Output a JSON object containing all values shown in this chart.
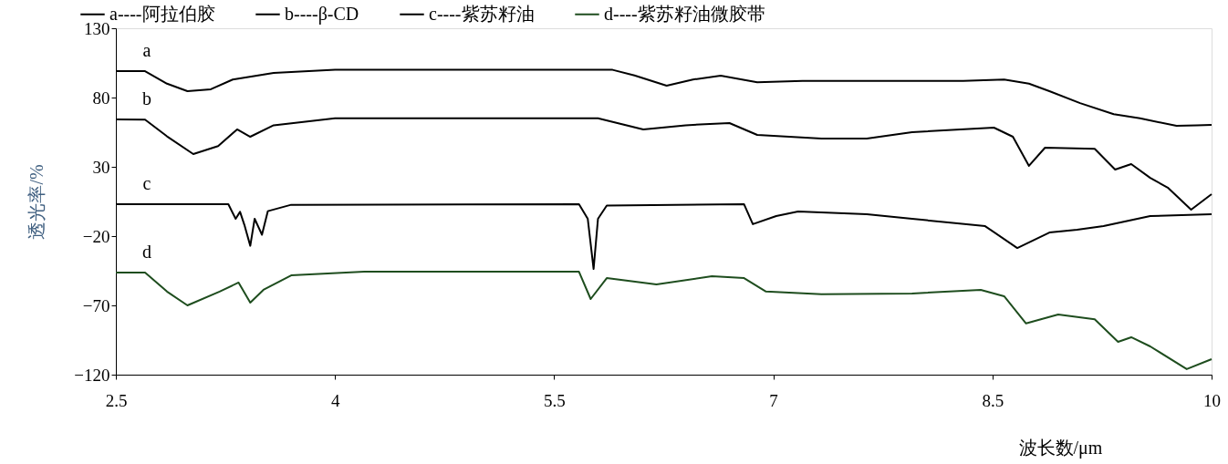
{
  "chart_data": {
    "type": "line",
    "xlabel": "波长数/μm",
    "ylabel": "透光率/%",
    "xlim": [
      2.5,
      10
    ],
    "xticks": [
      2.5,
      4,
      5.5,
      7,
      8.5,
      10
    ],
    "ylim": [
      -120,
      130
    ],
    "yticks": [
      130,
      80,
      30,
      -20,
      -70,
      -120
    ],
    "grid": false,
    "legend": "top",
    "marker": "none",
    "line_style": "solid",
    "series": [
      {
        "name": "a----阿拉伯胶",
        "color": "#000000",
        "x": [
          2.5,
          2.7,
          2.85,
          2.99,
          3.15,
          3.3,
          3.58,
          4.0,
          5.0,
          5.9,
          6.05,
          6.27,
          6.45,
          6.64,
          6.89,
          7.2,
          7.95,
          8.3,
          8.58,
          8.75,
          8.89,
          9.1,
          9.33,
          9.51,
          9.76,
          9.9,
          10.0
        ],
        "values": [
          99,
          99,
          90,
          84.6,
          86,
          93,
          97.8,
          100,
          100,
          100,
          96,
          88.6,
          93,
          95.8,
          91,
          92,
          92,
          92,
          93,
          90,
          84.6,
          76,
          68,
          65,
          59.6,
          60,
          60.3
        ]
      },
      {
        "name": "b----β-CD",
        "color": "#000000",
        "x": [
          2.5,
          2.7,
          2.85,
          3.03,
          3.2,
          3.33,
          3.42,
          3.58,
          4.0,
          5.0,
          5.8,
          6.11,
          6.4,
          6.7,
          6.89,
          7.33,
          7.64,
          7.95,
          8.51,
          8.64,
          8.75,
          8.86,
          9.2,
          9.34,
          9.45,
          9.58,
          9.7,
          9.86,
          10.0
        ],
        "values": [
          64.2,
          64,
          52,
          39.2,
          45,
          57,
          51.7,
          60,
          65,
          65,
          65,
          57,
          60,
          61.6,
          53,
          50.4,
          50.4,
          55,
          58.3,
          51.7,
          30.7,
          43.8,
          43,
          28,
          32,
          22,
          15,
          -0.9,
          10.3
        ]
      },
      {
        "name": "c----紫苏籽油",
        "color": "#000000",
        "x": [
          2.5,
          3.27,
          3.32,
          3.35,
          3.38,
          3.42,
          3.45,
          3.5,
          3.54,
          3.7,
          5.67,
          5.73,
          5.77,
          5.8,
          5.86,
          6.8,
          6.86,
          7.02,
          7.17,
          7.64,
          7.95,
          8.26,
          8.45,
          8.67,
          8.89,
          9.08,
          9.26,
          9.58,
          10.0
        ],
        "values": [
          3,
          3,
          -7.5,
          -2.5,
          -12,
          -27,
          -7.5,
          -19,
          -2,
          2.6,
          3,
          -7.5,
          -43.7,
          -7.5,
          2,
          3,
          -11.4,
          -5.5,
          -2.2,
          -4.2,
          -7.5,
          -10.8,
          -12.8,
          -28.6,
          -17.4,
          -15.4,
          -12.8,
          -5.5,
          -4.2
        ]
      },
      {
        "name": "d----紫苏籽油微胶带",
        "color": "#1e4d1e",
        "x": [
          2.5,
          2.7,
          2.85,
          2.99,
          3.21,
          3.34,
          3.42,
          3.51,
          3.7,
          4.2,
          5.67,
          5.75,
          5.86,
          6.2,
          6.58,
          6.8,
          6.95,
          7.33,
          7.95,
          8.42,
          8.58,
          8.73,
          8.95,
          9.2,
          9.36,
          9.45,
          9.58,
          9.83,
          10.0
        ],
        "values": [
          -46.3,
          -46.3,
          -60,
          -70,
          -60,
          -53.5,
          -68,
          -58.8,
          -48.3,
          -45.7,
          -45.7,
          -65.4,
          -50.3,
          -54.9,
          -49,
          -50.3,
          -60,
          -62,
          -61.4,
          -58.8,
          -63.4,
          -83,
          -76.6,
          -80,
          -96.3,
          -93,
          -99.6,
          -116,
          -108.8
        ]
      }
    ],
    "annotations": [
      "a",
      "b",
      "c",
      "d"
    ]
  }
}
